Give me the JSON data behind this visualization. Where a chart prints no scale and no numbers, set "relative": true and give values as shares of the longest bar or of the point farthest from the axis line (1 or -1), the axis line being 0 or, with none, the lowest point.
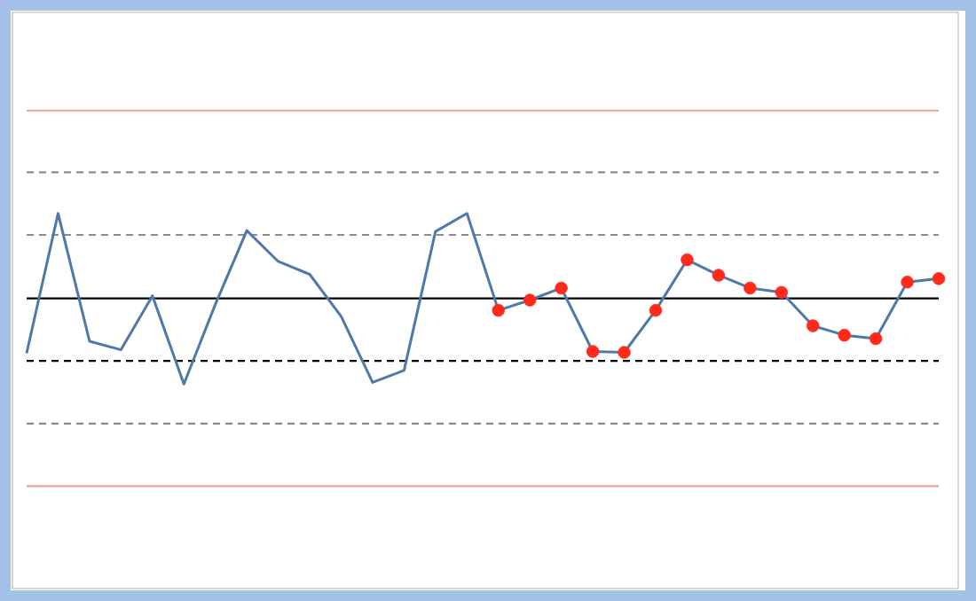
{
  "chart_data": {
    "type": "line",
    "relative": true,
    "categories": [
      null,
      null,
      null,
      null,
      null,
      null,
      null,
      null,
      null,
      null,
      null,
      null,
      null,
      null,
      null,
      null,
      null,
      null,
      null,
      null,
      null,
      null,
      null,
      null,
      null,
      null,
      null,
      null,
      null,
      null
    ],
    "series": [
      {
        "color": "#4f79a8",
        "marker": "circle",
        "line_style": "solid",
        "values": [
          -0.64,
          0.99,
          -0.5,
          -0.6,
          0.03,
          -1.0,
          -0.07,
          0.79,
          0.43,
          0.28,
          -0.21,
          -0.98,
          -0.84,
          0.78,
          0.99,
          -0.14,
          -0.02,
          0.12,
          -0.62,
          -0.63,
          -0.14,
          0.45,
          0.27,
          0.12,
          0.07,
          -0.32,
          -0.43,
          -0.47,
          0.19,
          0.23
        ],
        "colors": [
          null,
          null,
          null,
          null,
          null,
          null,
          null,
          null,
          null,
          null,
          null,
          null,
          null,
          null,
          null,
          "#ff2a1a",
          "#ff2a1a",
          "#ff2a1a",
          "#ff2a1a",
          "#ff2a1a",
          "#ff2a1a",
          "#ff2a1a",
          "#ff2a1a",
          "#ff2a1a",
          "#ff2a1a",
          "#ff2a1a",
          "#ff2a1a",
          "#ff2a1a",
          "#ff2a1a",
          "#ff2a1a"
        ]
      }
    ],
    "ref_lines": [
      {
        "axis": "y",
        "value": 2.19,
        "color": "#f4a09c",
        "line_style": "solid"
      },
      {
        "axis": "y",
        "value": 1.47,
        "color": "#8c8c8c",
        "line_style": "dashed"
      },
      {
        "axis": "y",
        "value": 0.74,
        "color": "#8c8c8c",
        "line_style": "dashed"
      },
      {
        "axis": "y",
        "value": 0,
        "color": "#000000",
        "line_style": "solid"
      },
      {
        "axis": "y",
        "value": -0.73,
        "color": "#000000",
        "line_style": "dashed"
      },
      {
        "axis": "y",
        "value": -1.46,
        "color": "#8c8c8c",
        "line_style": "dashed"
      },
      {
        "axis": "y",
        "value": -2.19,
        "color": "#f4a09c",
        "line_style": "solid"
      }
    ]
  }
}
